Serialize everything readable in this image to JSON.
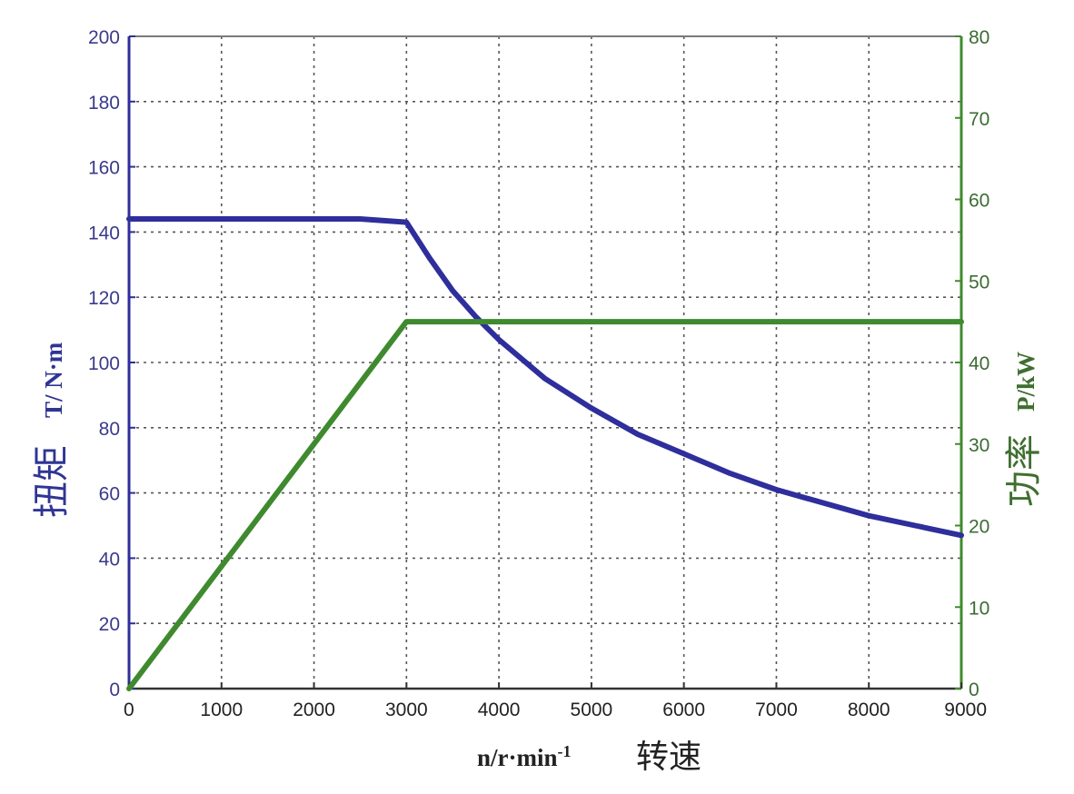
{
  "chart_data": {
    "type": "line",
    "x_axis": {
      "label": "n/r·min",
      "label_superscript": "-1",
      "label_zh": "转速",
      "range": [
        0,
        9000
      ],
      "ticks": [
        0,
        1000,
        2000,
        3000,
        4000,
        5000,
        6000,
        7000,
        8000,
        9000
      ]
    },
    "y_left": {
      "label": "T/ N·m",
      "label_zh": "扭矩",
      "range": [
        0,
        200
      ],
      "ticks": [
        0,
        20,
        40,
        60,
        80,
        100,
        120,
        140,
        160,
        180,
        200
      ],
      "color": "#2e2e9c"
    },
    "y_right": {
      "label": "P/kW",
      "label_zh": "功率",
      "range": [
        0,
        80
      ],
      "ticks": [
        0,
        10,
        20,
        30,
        40,
        50,
        60,
        70,
        80
      ],
      "color": "#3f8a2e"
    },
    "grid": true,
    "series": [
      {
        "axis": "left",
        "color": "#2e2e9c",
        "x": [
          0,
          1000,
          2000,
          2500,
          3000,
          3250,
          3500,
          3750,
          4000,
          4500,
          5000,
          5500,
          6000,
          6500,
          7000,
          7500,
          8000,
          8500,
          9000
        ],
        "y": [
          144,
          144,
          144,
          144,
          143,
          132,
          122,
          114,
          107,
          95,
          86,
          78,
          72,
          66,
          61,
          57,
          53,
          50,
          47
        ]
      },
      {
        "axis": "right",
        "color": "#3f8a2e",
        "x": [
          0,
          3000,
          9000
        ],
        "y": [
          0,
          45,
          45
        ]
      }
    ]
  }
}
